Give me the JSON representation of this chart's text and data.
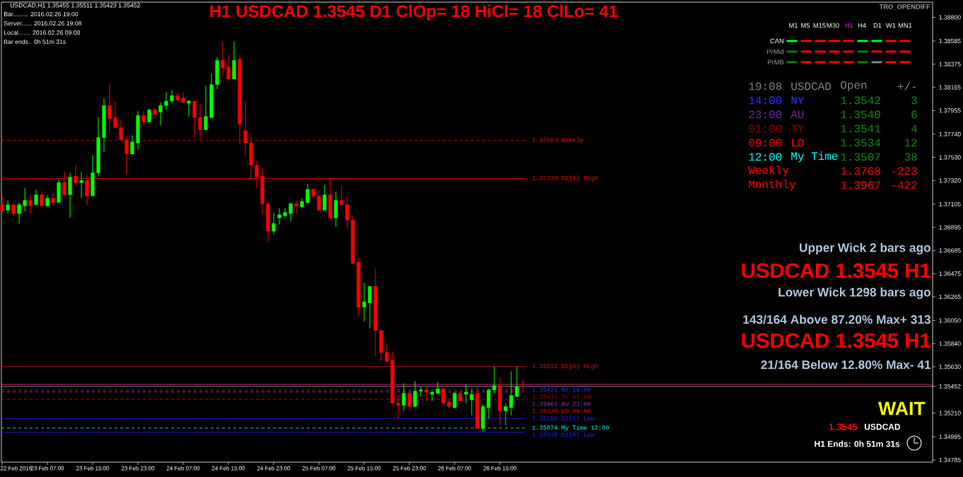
{
  "chart_data": {
    "type": "candlestick",
    "title": "H1 USDCAD 1.3545 D1 ClOp= 18 HiCl= 18 ClLo= 41",
    "x": [
      "2016-02-22T23:00",
      "2016-02-23T00:00",
      "2016-02-23T01:00",
      "2016-02-23T02:00",
      "2016-02-23T03:00",
      "2016-02-23T04:00",
      "2016-02-23T05:00",
      "2016-02-23T06:00",
      "2016-02-23T07:00",
      "2016-02-23T08:00",
      "2016-02-23T09:00",
      "2016-02-23T10:00",
      "2016-02-23T11:00",
      "2016-02-23T12:00",
      "2016-02-23T13:00",
      "2016-02-23T14:00",
      "2016-02-23T15:00",
      "2016-02-23T16:00",
      "2016-02-23T17:00",
      "2016-02-23T18:00",
      "2016-02-23T19:00",
      "2016-02-23T20:00",
      "2016-02-23T21:00",
      "2016-02-23T22:00",
      "2016-02-23T23:00",
      "2016-02-24T00:00",
      "2016-02-24T01:00",
      "2016-02-24T02:00",
      "2016-02-24T03:00",
      "2016-02-24T04:00",
      "2016-02-24T05:00",
      "2016-02-24T06:00",
      "2016-02-24T07:00",
      "2016-02-24T08:00",
      "2016-02-24T09:00",
      "2016-02-24T10:00",
      "2016-02-24T11:00",
      "2016-02-24T12:00",
      "2016-02-24T13:00",
      "2016-02-24T14:00",
      "2016-02-24T15:00",
      "2016-02-24T16:00",
      "2016-02-24T17:00",
      "2016-02-24T18:00",
      "2016-02-24T19:00",
      "2016-02-24T20:00",
      "2016-02-24T21:00",
      "2016-02-24T22:00",
      "2016-02-24T23:00",
      "2016-02-25T00:00",
      "2016-02-25T01:00",
      "2016-02-25T02:00",
      "2016-02-25T03:00",
      "2016-02-25T04:00",
      "2016-02-25T05:00",
      "2016-02-25T06:00",
      "2016-02-25T07:00",
      "2016-02-25T08:00",
      "2016-02-25T09:00",
      "2016-02-25T10:00",
      "2016-02-25T11:00",
      "2016-02-25T12:00",
      "2016-02-25T13:00",
      "2016-02-25T14:00",
      "2016-02-25T15:00",
      "2016-02-25T16:00",
      "2016-02-25T17:00",
      "2016-02-25T18:00",
      "2016-02-25T19:00",
      "2016-02-25T20:00",
      "2016-02-25T21:00",
      "2016-02-25T22:00",
      "2016-02-25T23:00",
      "2016-02-26T00:00",
      "2016-02-26T01:00",
      "2016-02-26T02:00",
      "2016-02-26T03:00",
      "2016-02-26T04:00",
      "2016-02-26T05:00",
      "2016-02-26T06:00",
      "2016-02-26T07:00",
      "2016-02-26T08:00",
      "2016-02-26T09:00",
      "2016-02-26T10:00",
      "2016-02-26T11:00",
      "2016-02-26T12:00",
      "2016-02-26T13:00",
      "2016-02-26T14:00",
      "2016-02-26T15:00",
      "2016-02-26T16:00",
      "2016-02-26T17:00",
      "2016-02-26T18:00",
      "2016-02-26T19:00"
    ],
    "xlim": [
      "2016-02-22T22:52",
      "2016-02-29T19:30"
    ],
    "xticks": [
      {
        "value": "2016-02-22T23:00",
        "label": "22 Feb 2016"
      },
      {
        "value": "2016-02-23T07:00",
        "label": "23 Feb 07:00"
      },
      {
        "value": "2016-02-23T15:00",
        "label": "23 Feb 15:00"
      },
      {
        "value": "2016-02-23T23:00",
        "label": "23 Feb 23:00"
      },
      {
        "value": "2016-02-24T07:00",
        "label": "24 Feb 07:00"
      },
      {
        "value": "2016-02-24T15:00",
        "label": "24 Feb 15:00"
      },
      {
        "value": "2016-02-24T23:00",
        "label": "24 Feb 23:00"
      },
      {
        "value": "2016-02-25T07:00",
        "label": "25 Feb 07:00"
      },
      {
        "value": "2016-02-25T15:00",
        "label": "25 Feb 15:00"
      },
      {
        "value": "2016-02-25T23:00",
        "label": "25 Feb 23:00"
      },
      {
        "value": "2016-02-26T07:00",
        "label": "26 Feb 07:00"
      },
      {
        "value": "2016-02-26T15:00",
        "label": "26 Feb 15:00"
      }
    ],
    "ohlc": [
      [
        1.371,
        1.3719,
        1.3702,
        1.3704
      ],
      [
        1.3705,
        1.3714,
        1.3702,
        1.371
      ],
      [
        1.371,
        1.3712,
        1.37,
        1.3702
      ],
      [
        1.3702,
        1.3712,
        1.3693,
        1.371
      ],
      [
        1.3709,
        1.3725,
        1.3704,
        1.3714
      ],
      [
        1.3714,
        1.3719,
        1.3702,
        1.3709
      ],
      [
        1.371,
        1.3724,
        1.371,
        1.3719
      ],
      [
        1.3719,
        1.3722,
        1.3709,
        1.3709
      ],
      [
        1.3709,
        1.3719,
        1.3708,
        1.3716
      ],
      [
        1.3716,
        1.3721,
        1.3709,
        1.3712
      ],
      [
        1.3712,
        1.3733,
        1.3712,
        1.373
      ],
      [
        1.373,
        1.374,
        1.3718,
        1.3719
      ],
      [
        1.3719,
        1.3739,
        1.3698,
        1.3735
      ],
      [
        1.3736,
        1.3746,
        1.3727,
        1.373
      ],
      [
        1.373,
        1.374,
        1.3716,
        1.3732
      ],
      [
        1.3732,
        1.3737,
        1.371,
        1.3718
      ],
      [
        1.3718,
        1.3755,
        1.3718,
        1.3739
      ],
      [
        1.3739,
        1.3789,
        1.3737,
        1.3771
      ],
      [
        1.3771,
        1.3807,
        1.3758,
        1.38
      ],
      [
        1.38,
        1.382,
        1.3776,
        1.3788
      ],
      [
        1.3789,
        1.3803,
        1.3779,
        1.378
      ],
      [
        1.378,
        1.3787,
        1.3769,
        1.3769
      ],
      [
        1.3769,
        1.3772,
        1.3737,
        1.3756
      ],
      [
        1.3756,
        1.3773,
        1.3756,
        1.3767
      ],
      [
        1.3766,
        1.3795,
        1.376,
        1.3791
      ],
      [
        1.3791,
        1.3795,
        1.3782,
        1.3785
      ],
      [
        1.3785,
        1.3797,
        1.3785,
        1.3796
      ],
      [
        1.3796,
        1.3798,
        1.3788,
        1.3792
      ],
      [
        1.3794,
        1.3803,
        1.3782,
        1.38
      ],
      [
        1.38,
        1.3812,
        1.3796,
        1.3804
      ],
      [
        1.3804,
        1.3814,
        1.3802,
        1.3809
      ],
      [
        1.3809,
        1.3812,
        1.3803,
        1.3805
      ],
      [
        1.3807,
        1.3812,
        1.3802,
        1.3803
      ],
      [
        1.3802,
        1.3805,
        1.379,
        1.3804
      ],
      [
        1.3804,
        1.3804,
        1.3771,
        1.3789
      ],
      [
        1.3789,
        1.3801,
        1.3769,
        1.3778
      ],
      [
        1.3778,
        1.3818,
        1.3778,
        1.379
      ],
      [
        1.3789,
        1.3829,
        1.3789,
        1.3819
      ],
      [
        1.3819,
        1.3844,
        1.3815,
        1.3841
      ],
      [
        1.3841,
        1.3858,
        1.3827,
        1.3834
      ],
      [
        1.3835,
        1.3846,
        1.3822,
        1.3824
      ],
      [
        1.3824,
        1.3858,
        1.3824,
        1.3841
      ],
      [
        1.3842,
        1.3846,
        1.3765,
        1.3783
      ],
      [
        1.3777,
        1.3804,
        1.3754,
        1.3766
      ],
      [
        1.3766,
        1.3772,
        1.3734,
        1.3746
      ],
      [
        1.3746,
        1.375,
        1.3725,
        1.3735
      ],
      [
        1.3736,
        1.3743,
        1.3701,
        1.3711
      ],
      [
        1.3711,
        1.3712,
        1.3676,
        1.3686
      ],
      [
        1.3686,
        1.3703,
        1.3683,
        1.3693
      ],
      [
        1.3698,
        1.3707,
        1.3692,
        1.3701
      ],
      [
        1.37,
        1.3707,
        1.3699,
        1.3703
      ],
      [
        1.3702,
        1.3712,
        1.3695,
        1.3711
      ],
      [
        1.3711,
        1.3714,
        1.3702,
        1.3709
      ],
      [
        1.3708,
        1.3716,
        1.3707,
        1.3713
      ],
      [
        1.3712,
        1.3729,
        1.3711,
        1.3724
      ],
      [
        1.3724,
        1.3725,
        1.3716,
        1.3718
      ],
      [
        1.3718,
        1.3723,
        1.3705,
        1.3705
      ],
      [
        1.3705,
        1.3728,
        1.3705,
        1.3719
      ],
      [
        1.3719,
        1.3734,
        1.3696,
        1.3698
      ],
      [
        1.3698,
        1.3722,
        1.369,
        1.3714
      ],
      [
        1.3714,
        1.3728,
        1.3709,
        1.371
      ],
      [
        1.371,
        1.3718,
        1.3689,
        1.3696
      ],
      [
        1.3696,
        1.37,
        1.3656,
        1.3657
      ],
      [
        1.3658,
        1.3662,
        1.3609,
        1.3617
      ],
      [
        1.3617,
        1.3639,
        1.3604,
        1.3622
      ],
      [
        1.3621,
        1.3636,
        1.3598,
        1.3636
      ],
      [
        1.3636,
        1.3652,
        1.3573,
        1.3596
      ],
      [
        1.3596,
        1.3596,
        1.3568,
        1.3576
      ],
      [
        1.3576,
        1.3584,
        1.3567,
        1.3568
      ],
      [
        1.3569,
        1.3577,
        1.3529,
        1.353
      ],
      [
        1.353,
        1.3538,
        1.3516,
        1.3528
      ],
      [
        1.3528,
        1.3548,
        1.3523,
        1.3539
      ],
      [
        1.3539,
        1.3542,
        1.3525,
        1.3527
      ],
      [
        1.3527,
        1.355,
        1.3526,
        1.3541
      ],
      [
        1.3541,
        1.3545,
        1.3536,
        1.3542
      ],
      [
        1.3542,
        1.3545,
        1.3532,
        1.354
      ],
      [
        1.3538,
        1.3541,
        1.3532,
        1.354
      ],
      [
        1.3539,
        1.3549,
        1.3538,
        1.3543
      ],
      [
        1.3543,
        1.3545,
        1.353,
        1.353
      ],
      [
        1.3531,
        1.3533,
        1.3525,
        1.3527
      ],
      [
        1.3526,
        1.354,
        1.3525,
        1.3539
      ],
      [
        1.3539,
        1.354,
        1.3532,
        1.3532
      ],
      [
        1.3538,
        1.3547,
        1.353,
        1.354
      ],
      [
        1.3533,
        1.3543,
        1.3519,
        1.3538
      ],
      [
        1.3539,
        1.3545,
        1.3507,
        1.3507
      ],
      [
        1.3507,
        1.3529,
        1.3504,
        1.3527
      ],
      [
        1.3526,
        1.3543,
        1.3516,
        1.3542
      ],
      [
        1.3542,
        1.3563,
        1.3539,
        1.3546
      ],
      [
        1.3546,
        1.3553,
        1.351,
        1.3523
      ],
      [
        1.3523,
        1.353,
        1.351,
        1.3527
      ],
      [
        1.3526,
        1.3559,
        1.3519,
        1.3537
      ],
      [
        1.3536,
        1.3563,
        1.3536,
        1.3545
      ],
      [
        1.35455,
        1.35511,
        1.35423,
        1.35452
      ]
    ],
    "colors": [
      "#ff0000",
      "#00ff00",
      "#ff0000",
      "#00ff00",
      "#00ff00",
      "#ff0000",
      "#00ff00",
      "#ff0000",
      "#00ff00",
      "#ff0000",
      "#00ff00",
      "#ff0000",
      "#00ff00",
      "#ff0000",
      "#00ff00",
      "#ff0000",
      "#00ff00",
      "#00ff00",
      "#00ff00",
      "#ff0000",
      "#ff0000",
      "#ff0000",
      "#ff0000",
      "#00ff00",
      "#00ff00",
      "#ff0000",
      "#00ff00",
      "#ff0000",
      "#00ff00",
      "#00ff00",
      "#00ff00",
      "#ff0000",
      "#ff0000",
      "#00ff00",
      "#ff0000",
      "#ff0000",
      "#00ff00",
      "#00ff00",
      "#00ff00",
      "#ff0000",
      "#ff0000",
      "#00ff00",
      "#ff0000",
      "#ff0000",
      "#ff0000",
      "#ff0000",
      "#ff0000",
      "#ff0000",
      "#00ff00",
      "#00ff00",
      "#00ff00",
      "#00ff00",
      "#ff0000",
      "#00ff00",
      "#00ff00",
      "#ff0000",
      "#ff0000",
      "#00ff00",
      "#ff0000",
      "#00ff00",
      "#ff0000",
      "#ff0000",
      "#ff0000",
      "#ff0000",
      "#00ff00",
      "#00ff00",
      "#ff0000",
      "#ff0000",
      "#ff0000",
      "#ff0000",
      "#ff0000",
      "#00ff00",
      "#ff0000",
      "#00ff00",
      "#00ff00",
      "#ff0000",
      "#00ff00",
      "#00ff00",
      "#ff0000",
      "#ff0000",
      "#00ff00",
      "#ff0000",
      "#00ff00",
      "#00ff00",
      "#ff0000",
      "#00ff00",
      "#00ff00",
      "#00ff00",
      "#ff0000",
      "#00ff00",
      "#00ff00",
      "#00ff00",
      "#ff0000"
    ],
    "ylim": [
      1.34765,
      1.38938
    ],
    "yticks": [
      {
        "value": 1.388,
        "label": "1.38800"
      },
      1.38585,
      1.38375,
      1.38165,
      1.37955,
      {
        "value": 1.3774,
        "label": "1.37740"
      },
      {
        "value": 1.3753,
        "label": "1.37530"
      },
      {
        "value": 1.3732,
        "label": "1.37320"
      },
      1.37105,
      1.36895,
      1.36685,
      1.36475,
      1.36265,
      {
        "value": 1.3605,
        "label": "1.36050"
      },
      {
        "value": 1.3584,
        "label": "1.35840"
      },
      {
        "value": 1.3563,
        "label": "1.35630"
      },
      1.35452,
      {
        "value": 1.3521,
        "label": "1.35210"
      },
      1.34995,
      1.34785
    ],
    "ref_lines": [
      {
        "axis": "y",
        "value": 1.37683,
        "label": "1.37683 Weekly",
        "color": "#ff0000",
        "line_style": "dashed"
      },
      {
        "axis": "y",
        "value": 1.37339,
        "label": "1.37339 D1[1] High",
        "color": "#ff0000",
        "line_style": "solid"
      },
      {
        "axis": "y",
        "value": 1.35632,
        "label": "1.35632 D1[0] High",
        "color": "#e01010",
        "line_style": "solid"
      },
      {
        "axis": "y",
        "value": 1.3547,
        "color": "#ff3399",
        "line_style": "solid"
      },
      {
        "axis": "y",
        "value": 1.35452,
        "color": "#a0a0a0",
        "line_style": "solid"
      },
      {
        "axis": "y",
        "value": 1.35421,
        "label": "1.35421 NY 14:00",
        "color": "#3030ff",
        "line_style": "dashed"
      },
      {
        "axis": "y",
        "value": 1.35411,
        "label": "1.35411 TY 01:00",
        "color": "#a00000",
        "line_style": "dashed"
      },
      {
        "axis": "y",
        "value": 1.35401,
        "label": "1.35401 AU 23:00",
        "color": "#8040c0",
        "line_style": "dashed"
      },
      {
        "axis": "y",
        "value": 1.35336,
        "label": "1.35336 LD 09:00",
        "color": "#ff0000",
        "line_style": "dashed"
      },
      {
        "axis": "y",
        "value": 1.35159,
        "label": "1.35159 D1[1] Low",
        "color": "#2020ff",
        "line_style": "solid"
      },
      {
        "axis": "y",
        "value": 1.35074,
        "label": "1.35074 My Time 12:00",
        "color": "#00ffff",
        "line_style": "dashed"
      },
      {
        "axis": "y",
        "value": 1.35036,
        "label": "1.35036 D1[0] Low",
        "color": "#2020ff",
        "line_style": "solid"
      }
    ],
    "annotations": [
      "USDCAD,H1 1.35455 1.35511 1.35423 1.35452",
      "Bar......... 2016.02.26 19:00",
      "Server...... 2016.02.26 19:08",
      "Local....... 2016.02.26 09:08",
      "Bar ends.. 0h 51m 31s",
      "TRO_OPENDIFF",
      "M1",
      "M5",
      "M15",
      "M30",
      "H1",
      "H4",
      "D1",
      "W1",
      "MN1",
      "CAN",
      "PrMid",
      "PrMB",
      "19:08",
      "USDCAD",
      "Open",
      "+/-",
      "14:00",
      "NY",
      "1.3542",
      "3",
      "23:00",
      "AU",
      "1.3540",
      "6",
      "01:00",
      "TY",
      "1.3541",
      "4",
      "09:00",
      "LD",
      "1.3534",
      "12",
      "12:00",
      "My Time",
      "1.3507",
      "38",
      "Weekly",
      "1.3768",
      "-223",
      "Monthly",
      "1.3967",
      "-422",
      "Upper Wick 2 bars ago",
      "USDCAD 1.3545 H1",
      "Lower Wick 1298 bars ago",
      "143/164 Above 87.20% Max+ 313",
      "USDCAD 1.3545 H1",
      "21/164 Below 12.80% Max- 41",
      "WAIT",
      "1.3545",
      "USDCAD",
      "H1 Ends: 0h 51m 31s"
    ]
  }
}
